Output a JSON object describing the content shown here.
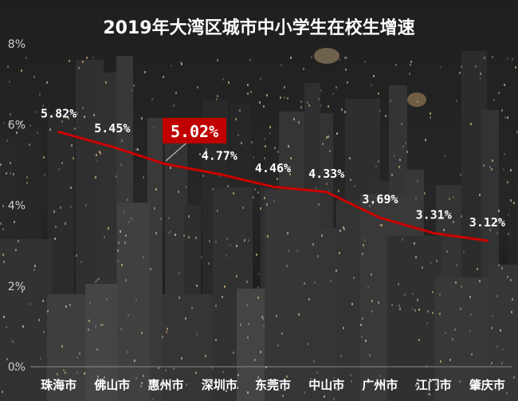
{
  "chart_data": {
    "type": "line",
    "title": "2019年大湾区城市中小学生在校生增速",
    "categories": [
      "珠海市",
      "佛山市",
      "惠州市",
      "深圳市",
      "东莞市",
      "中山市",
      "广州市",
      "江门市",
      "肇庆市"
    ],
    "series": [
      {
        "values": [
          5.82,
          5.45,
          5.02,
          4.77,
          4.46,
          4.33,
          3.69,
          3.31,
          3.12
        ]
      }
    ],
    "data_labels": [
      "5.82%",
      "5.45%",
      "5.02%",
      "4.77%",
      "4.46%",
      "4.33%",
      "3.69%",
      "3.31%",
      "3.12%"
    ],
    "highlighted_label": "5.02%",
    "y_ticks": [
      "0%",
      "2%",
      "4%",
      "6%",
      "8%"
    ],
    "ylim": [
      0,
      8
    ],
    "xlabel": "",
    "ylabel": "",
    "grid": false,
    "line_color": "#cc0000",
    "label_color": "#ffffff",
    "highlight_bg": "#c00000",
    "title_color": "#ffffff",
    "axis_text_color": "#ffffff"
  }
}
